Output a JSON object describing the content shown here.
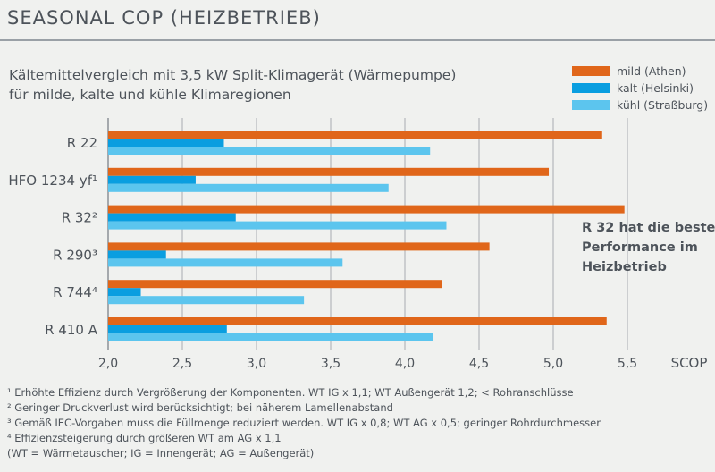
{
  "title": "SEASONAL COP (HEIZBETRIEB)",
  "subtitle_line1": "Kältemittelvergleich mit 3,5 kW Split-Klimagerät (Wärmepumpe)",
  "subtitle_line2": "für milde, kalte und kühle Klimaregionen",
  "annotation": [
    "R 32 hat die beste",
    "Performance im",
    "Heizbetrieb"
  ],
  "footnotes": [
    "¹ Erhöhte Effizienz durch Vergrößerung der Komponenten. WT IG x 1,1; WT Außengerät 1,2; < Rohranschlüsse",
    "² Geringer Druckverlust wird berücksichtigt; bei näherem Lamellenabstand",
    "³ Gemäß IEC-Vorgaben muss die Füllmenge reduziert werden. WT IG x 0,8; WT AG x 0,5; geringer Rohrdurchmesser",
    "⁴ Effizienzsteigerung durch größeren WT am AG x 1,1",
    "(WT = Wärmetauscher; IG = Innengerät; AG = Außengerät)"
  ],
  "chart_data": {
    "type": "bar",
    "orientation": "horizontal",
    "categories": [
      "R 22",
      "HFO 1234 yf¹",
      "R 32²",
      "R 290³",
      "R 744⁴",
      "R 410 A"
    ],
    "series": [
      {
        "name": "mild (Athen)",
        "color": "#e0661a",
        "values": [
          5.33,
          4.97,
          5.48,
          4.57,
          4.25,
          5.36
        ]
      },
      {
        "name": "kalt (Helsinki)",
        "color": "#0a9ee0",
        "values": [
          2.78,
          2.59,
          2.86,
          2.39,
          2.22,
          2.8
        ]
      },
      {
        "name": "kühl (Straßburg)",
        "color": "#5cc5ee",
        "values": [
          4.17,
          3.89,
          4.28,
          3.58,
          3.32,
          4.19
        ]
      }
    ],
    "xlim": [
      2.0,
      5.5
    ],
    "xticks": [
      2.0,
      2.5,
      3.0,
      3.5,
      4.0,
      4.5,
      5.0,
      5.5
    ],
    "xtick_labels": [
      "2,0",
      "2,5",
      "3,0",
      "3,5",
      "4,0",
      "4,5",
      "5,0",
      "5,5"
    ],
    "xlabel": "SCOP",
    "grid": true,
    "legend": "top-right"
  }
}
